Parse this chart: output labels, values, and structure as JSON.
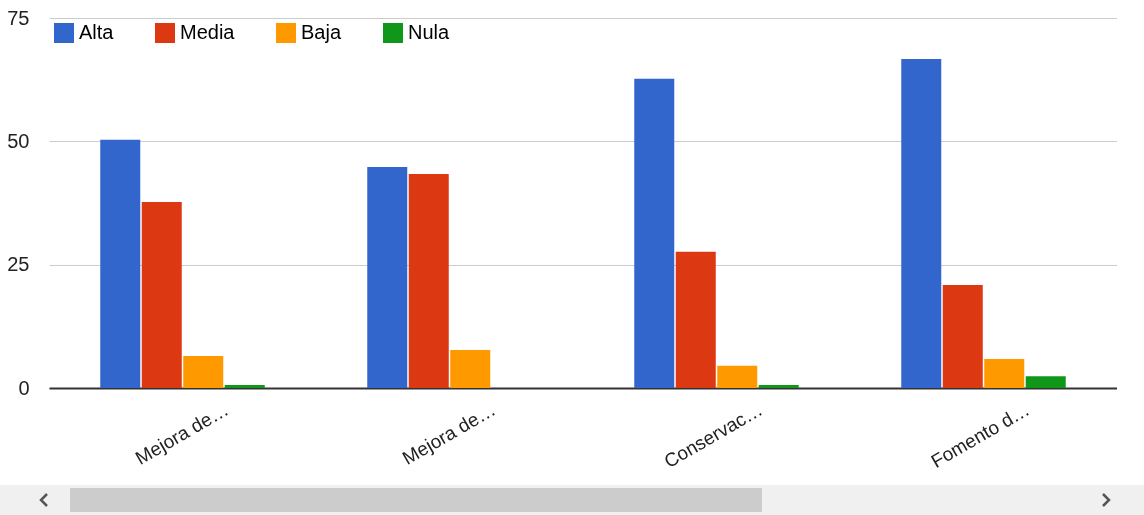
{
  "chart_data": {
    "type": "bar",
    "categories": [
      "Mejora de…",
      "Mejora de…",
      "Conservac…",
      "Fomento d…"
    ],
    "series": [
      {
        "name": "Alta",
        "color": "#3366cc",
        "values": [
          50.3,
          44.8,
          62.7,
          66.7
        ]
      },
      {
        "name": "Media",
        "color": "#dc3912",
        "values": [
          37.7,
          43.4,
          27.6,
          20.9
        ]
      },
      {
        "name": "Baja",
        "color": "#ff9900",
        "values": [
          6.5,
          7.7,
          4.5,
          5.9
        ]
      },
      {
        "name": "Nula",
        "color": "#109618",
        "values": [
          0.6,
          0,
          0.6,
          2.4
        ]
      }
    ],
    "ylim": [
      0,
      75
    ],
    "yticks": [
      0,
      25,
      50,
      75
    ],
    "grid": "y",
    "legend": "top left"
  }
}
